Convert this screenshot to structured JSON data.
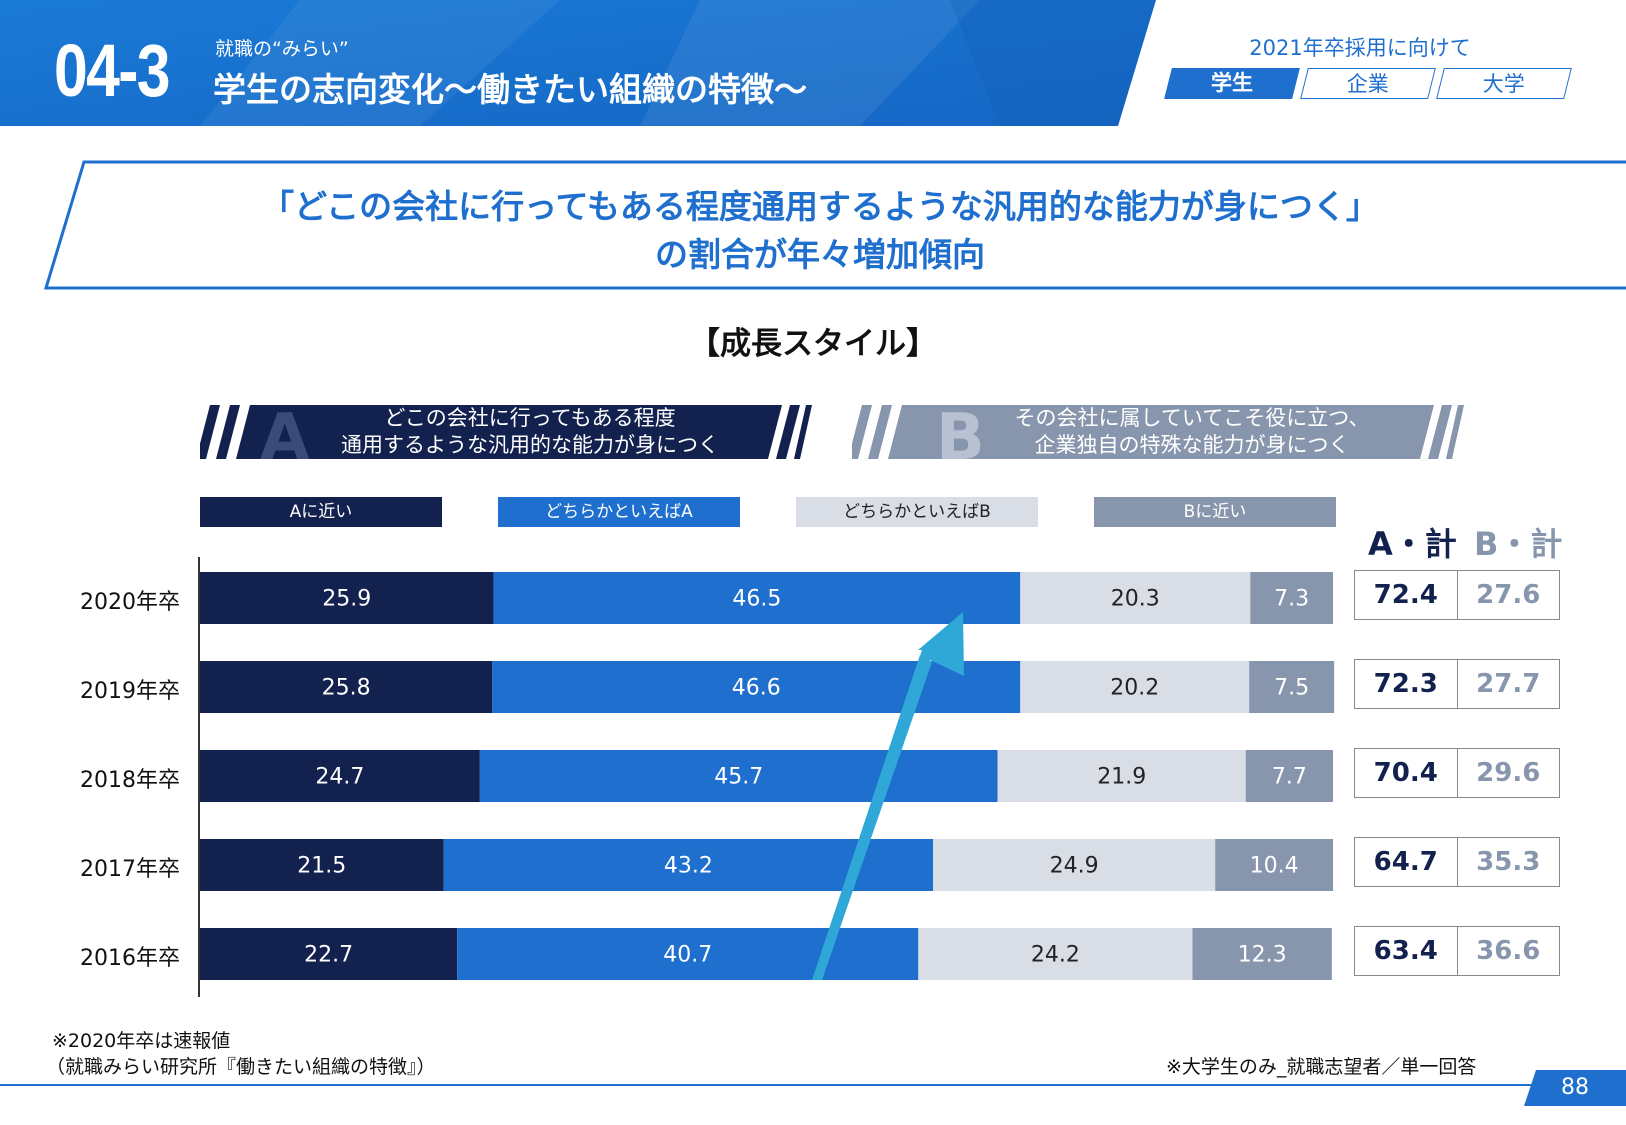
{
  "header": {
    "section_number": "04-3",
    "section_sub": "就職の“みらい”",
    "section_title": "学生の志向変化～働きたい組織の特徴～",
    "caption": "2021年卒採用に向けて",
    "tabs": [
      {
        "label": "学生",
        "active": true
      },
      {
        "label": "企業",
        "active": false
      },
      {
        "label": "大学",
        "active": false
      }
    ]
  },
  "headline": {
    "line1": "「どこの会社に行ってもある程度通用するような汎用的な能力が身につく」",
    "line2": "の割合が年々増加傾向"
  },
  "banner_a": {
    "letter": "A",
    "line1": "どこの会社に行ってもある程度",
    "line2": "通用するような汎用的な能力が身につく"
  },
  "banner_b": {
    "letter": "B",
    "line1": "その会社に属していてこそ役に立つ、",
    "line2": "企業独自の特殊な能力が身につく"
  },
  "colors": {
    "a_close": "#13214f",
    "a_somewhat": "#1f6fcf",
    "b_somewhat": "#d8dde6",
    "b_close": "#8896ad",
    "arrow": "#2fa8d8",
    "brand": "#1f6fcf"
  },
  "chart_data": {
    "type": "bar",
    "orientation": "horizontal",
    "stacked": true,
    "title": "【成長スタイル】",
    "categories": [
      "2020年卒",
      "2019年卒",
      "2018年卒",
      "2017年卒",
      "2016年卒"
    ],
    "series": [
      {
        "name": "Aに近い",
        "values": [
          25.9,
          25.8,
          24.7,
          21.5,
          22.7
        ]
      },
      {
        "name": "どちらかといえばA",
        "values": [
          46.5,
          46.6,
          45.7,
          43.2,
          40.7
        ]
      },
      {
        "name": "どちらかといえばB",
        "values": [
          20.3,
          20.2,
          21.9,
          24.9,
          24.2
        ]
      },
      {
        "name": "Bに近い",
        "values": [
          7.3,
          7.5,
          7.7,
          10.4,
          12.3
        ]
      }
    ],
    "totals_header": {
      "a": "A・計",
      "b": "B・計"
    },
    "totals": {
      "a": [
        72.4,
        72.3,
        70.4,
        64.7,
        63.4
      ],
      "b": [
        27.6,
        27.7,
        29.6,
        35.3,
        36.6
      ]
    },
    "xlim": [
      0,
      100
    ]
  },
  "notes": {
    "preliminary": "※2020年卒は速報値",
    "source": "（就職みらい研究所『働きたい組織の特徴』）",
    "sample": "※大学生のみ_就職志望者／単一回答"
  },
  "page_number": "88"
}
